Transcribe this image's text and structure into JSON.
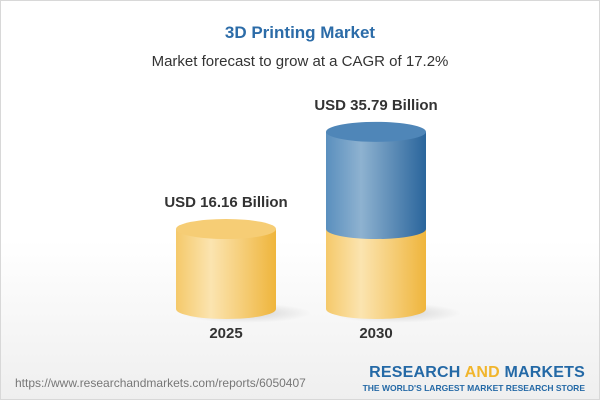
{
  "chart_data": {
    "type": "bar",
    "style": "3d-cylinder",
    "title": "3D Printing Market",
    "subtitle": "Market forecast to grow at a CAGR of 17.2%",
    "categories": [
      "2025",
      "2030"
    ],
    "values": [
      16.16,
      35.79
    ],
    "unit": "USD Billion",
    "data_labels": [
      "USD 16.16 Billion",
      "USD 35.79 Billion"
    ],
    "colors": {
      "base": "#f3c35a",
      "growth": "#3f7bb0",
      "title": "#2c6ca8"
    }
  },
  "footer": {
    "url": "https://www.researchandmarkets.com/reports/6050407",
    "logo_part1": "RESEARCH ",
    "logo_part2": "AND",
    "logo_part3": " MARKETS",
    "tagline": "THE WORLD'S LARGEST MARKET RESEARCH STORE"
  }
}
